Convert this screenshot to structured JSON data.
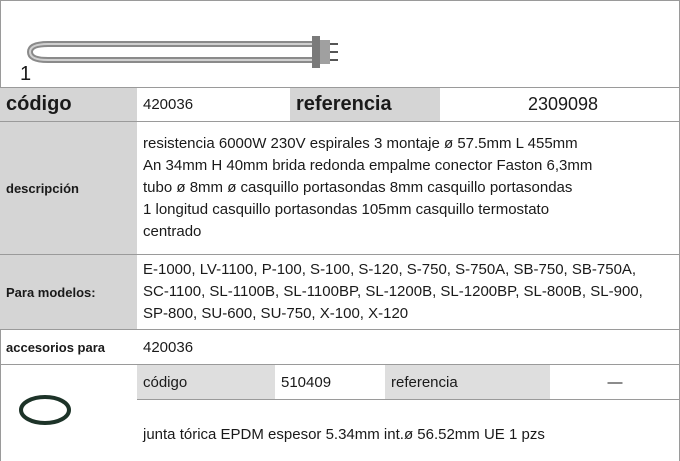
{
  "item_number": "1",
  "product": {
    "codigo_label": "código",
    "codigo": "420036",
    "referencia_label": "referencia",
    "referencia": "2309098",
    "descripcion_label": "descripción",
    "descripcion_lines": [
      "resistencia  6000W 230V espirales 3 montaje ø 57.5mm L 455mm",
      "An 34mm H 40mm brida redonda empalme conector Faston 6,3mm",
      "tubo ø 8mm ø casquillo portasondas 8mm casquillo portasondas",
      "1 longitud casquillo portasondas 105mm casquillo termostato",
      "centrado"
    ],
    "modelos_label": "Para modelos:",
    "modelos_lines": [
      "E-1000, LV-1100, P-100, S-100, S-120, S-750, S-750A, SB-750, SB-750A,",
      "SC-1100, SL-1100B, SL-1100BP, SL-1200B, SL-1200BP, SL-800B, SL-900,",
      "SP-800, SU-600, SU-750, X-100, X-120"
    ],
    "accesorios_label": "accesorios para",
    "accesorios": "420036"
  },
  "accessory": {
    "codigo_label": "código",
    "codigo": "510409",
    "referencia_label": "referencia",
    "referencia": "—",
    "descripcion": "junta tórica  EPDM espesor  5.34mm int.ø 56.52mm UE 1 pzs"
  }
}
